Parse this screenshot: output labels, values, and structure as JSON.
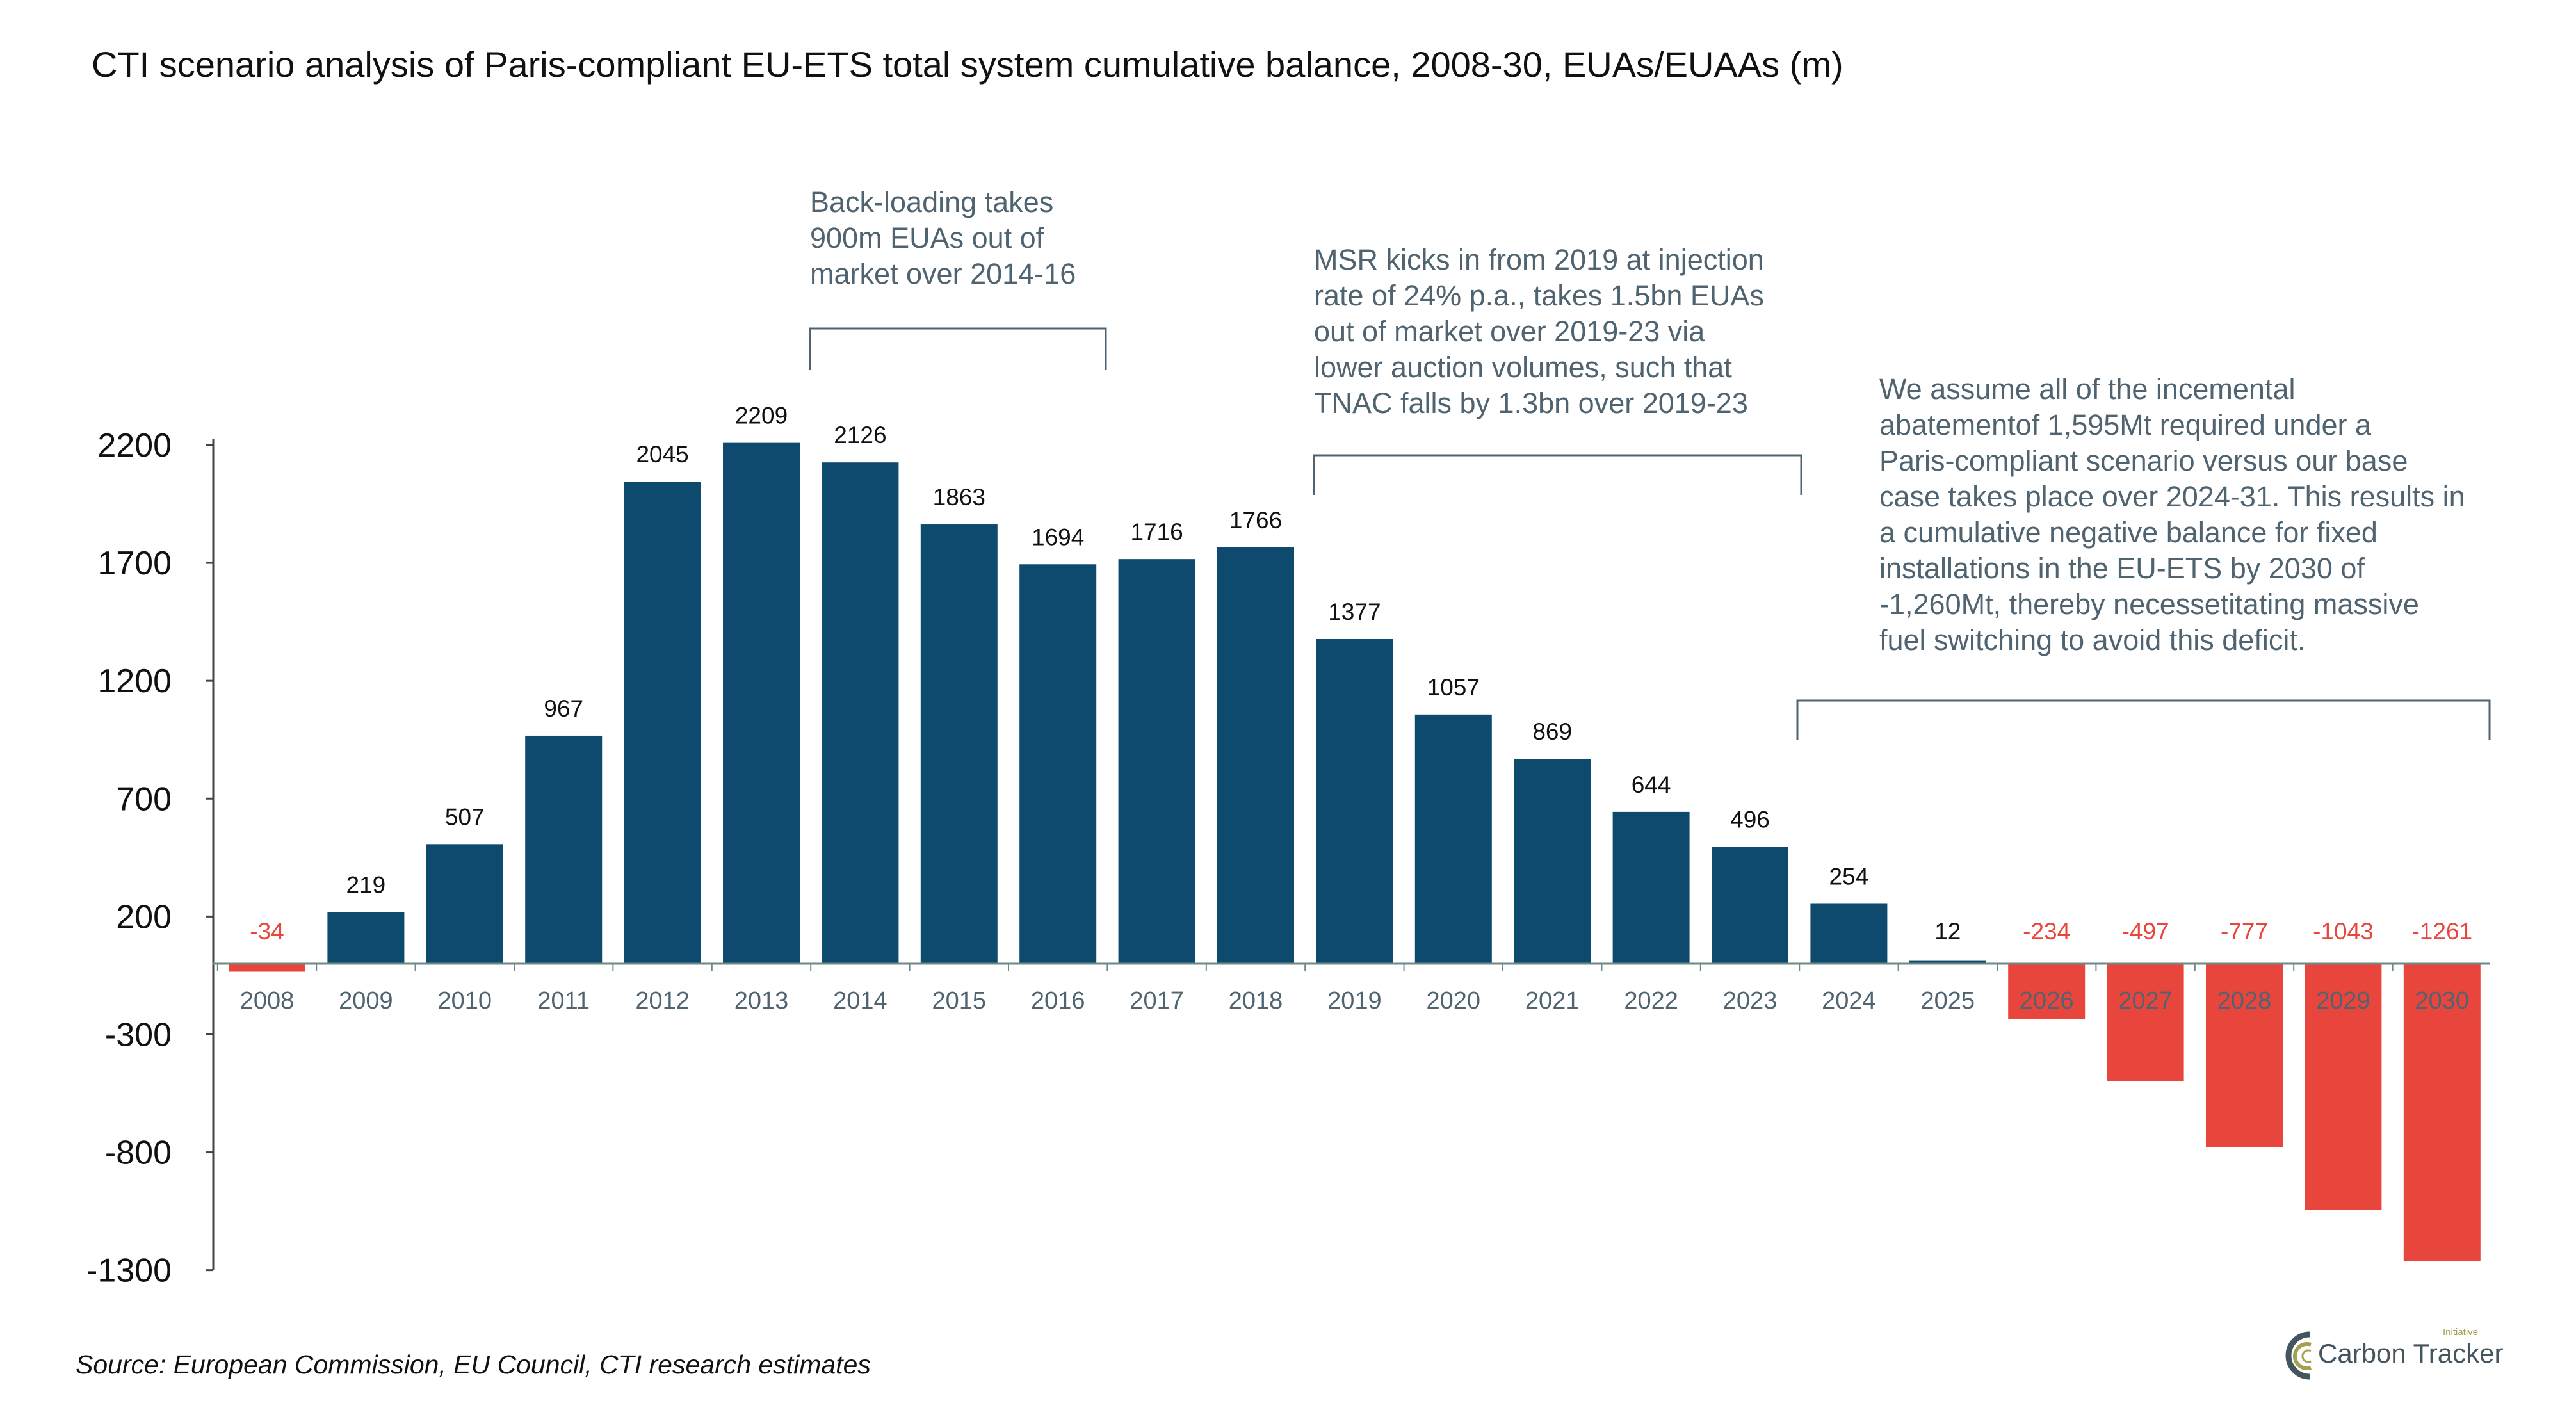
{
  "title": "CTI scenario analysis of Paris-compliant EU-ETS total system cumulative balance, 2008-30, EUAs/EUAAs (m)",
  "annotations": [
    {
      "text": "Back-loading takes\n900m EUAs out of\nmarket over 2014-16",
      "span": [
        "2014",
        "2016"
      ]
    },
    {
      "text": "MSR kicks in  from 2019 at injection\nrate of 24% p.a., takes 1.5bn EUAs\nout of market over 2019-23 via\nlower auction volumes, such that\nTNAC falls by 1.3bn over 2019-23",
      "span": [
        "2019",
        "2023"
      ]
    },
    {
      "text": "We assume all of the incemental\nabatementof 1,595Mt  required under a\nParis-compliant scenario versus our base\ncase takes place over 2024-31. This results in\na cumulative negative balance for fixed\ninstallations in the EU-ETS by 2030 of\n-1,260Mt, thereby necessetitating massive\nfuel switching to avoid this deficit.",
      "span": [
        "2024",
        "2030"
      ]
    }
  ],
  "source": "Source: European Commission, EU Council, CTI research estimates",
  "logo": {
    "text": "Carbon Tracker",
    "superscript": "Initiative"
  },
  "colors": {
    "positive": "#0E4A6E",
    "negative": "#E8453C",
    "note_text": "#4F6470"
  },
  "chart_data": {
    "type": "bar",
    "title": "CTI scenario analysis of Paris-compliant EU-ETS total system cumulative balance, 2008-30, EUAs/EUAAs (m)",
    "xlabel": "",
    "ylabel": "",
    "categories": [
      "2008",
      "2009",
      "2010",
      "2011",
      "2012",
      "2013",
      "2014",
      "2015",
      "2016",
      "2017",
      "2018",
      "2019",
      "2020",
      "2021",
      "2022",
      "2023",
      "2024",
      "2025",
      "2026",
      "2027",
      "2028",
      "2029",
      "2030"
    ],
    "values": [
      -34,
      219,
      507,
      967,
      2045,
      2209,
      2126,
      1863,
      1694,
      1716,
      1766,
      1377,
      1057,
      869,
      644,
      496,
      254,
      12,
      -234,
      -497,
      -777,
      -1043,
      -1261
    ],
    "ylim": [
      -1300,
      2200
    ],
    "yticks": [
      2200,
      1700,
      1200,
      700,
      200,
      -300,
      -800,
      -1300
    ],
    "grid": false,
    "data_labels": true
  }
}
